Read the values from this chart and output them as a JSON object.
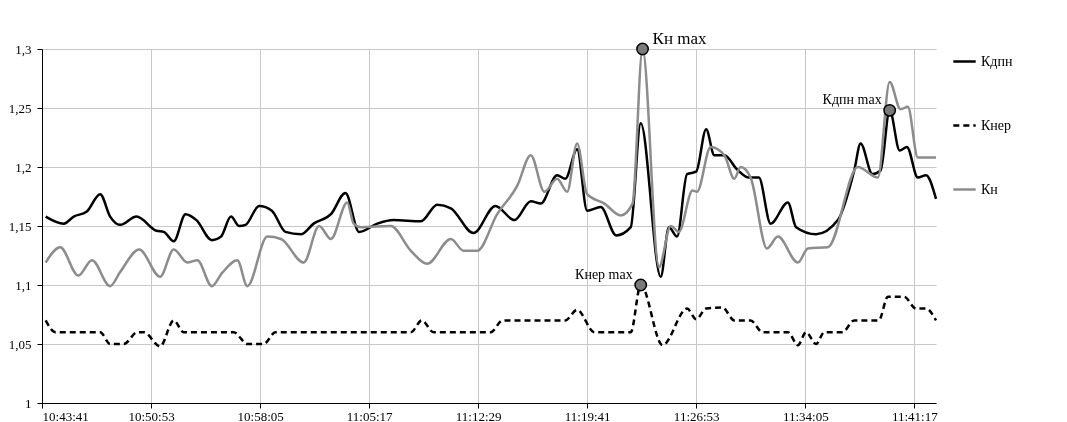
{
  "chart_data": {
    "type": "line",
    "xlim": [
      10.728,
      11.712
    ],
    "ylim": [
      1,
      1.3
    ],
    "xticks": [
      {
        "value": 10.7281,
        "label": "10:43:41"
      },
      {
        "value": 10.8481,
        "label": "10:50:53"
      },
      {
        "value": 10.9681,
        "label": "10:58:05"
      },
      {
        "value": 11.0881,
        "label": "11:05:17"
      },
      {
        "value": 11.2081,
        "label": "11:12:29"
      },
      {
        "value": 11.3281,
        "label": "11:19:41"
      },
      {
        "value": 11.4481,
        "label": "11:26:53"
      },
      {
        "value": 11.5681,
        "label": "11:34:05"
      },
      {
        "value": 11.6881,
        "label": "11:41:17"
      }
    ],
    "yticks": [
      1,
      {
        "value": 1.05,
        "label": "1,05"
      },
      {
        "value": 1.1,
        "label": "1,1"
      },
      {
        "value": 1.15,
        "label": "1,15"
      },
      {
        "value": 1.2,
        "label": "1,2"
      },
      {
        "value": 1.25,
        "label": "1,25"
      },
      {
        "value": 1.3,
        "label": "1,3"
      }
    ],
    "grid": true,
    "legend": "right",
    "marker": "none",
    "series": [
      {
        "name": "Кдпн",
        "color": "#000000",
        "line_style": "solid",
        "x": [
          10.732,
          10.752,
          10.763,
          10.777,
          10.792,
          10.803,
          10.814,
          10.832,
          10.854,
          10.862,
          10.873,
          10.886,
          10.898,
          10.915,
          10.925,
          10.936,
          10.945,
          10.952,
          10.967,
          10.981,
          10.996,
          11.013,
          11.027,
          11.046,
          11.062,
          11.077,
          11.097,
          11.115,
          11.145,
          11.163,
          11.178,
          11.203,
          11.227,
          11.248,
          11.266,
          11.277,
          11.295,
          11.304,
          11.317,
          11.328,
          11.343,
          11.36,
          11.376,
          11.387,
          11.409,
          11.418,
          11.427,
          11.438,
          11.448,
          11.459,
          11.468,
          11.479,
          11.493,
          11.506,
          11.517,
          11.53,
          11.549,
          11.558,
          11.58,
          11.604,
          11.622,
          11.629,
          11.642,
          11.651,
          11.661,
          11.672,
          11.68,
          11.692,
          11.701,
          11.712
        ],
        "values": [
          1.158,
          1.152,
          1.158,
          1.162,
          1.177,
          1.158,
          1.151,
          1.158,
          1.146,
          1.145,
          1.137,
          1.16,
          1.155,
          1.138,
          1.141,
          1.158,
          1.15,
          1.151,
          1.167,
          1.163,
          1.145,
          1.143,
          1.152,
          1.16,
          1.178,
          1.145,
          1.152,
          1.155,
          1.154,
          1.168,
          1.165,
          1.144,
          1.167,
          1.155,
          1.171,
          1.169,
          1.193,
          1.19,
          1.215,
          1.163,
          1.166,
          1.142,
          1.149,
          1.237,
          1.107,
          1.149,
          1.141,
          1.194,
          1.196,
          1.232,
          1.21,
          1.21,
          1.198,
          1.191,
          1.191,
          1.152,
          1.17,
          1.149,
          1.143,
          1.155,
          1.197,
          1.22,
          1.194,
          1.197,
          1.248,
          1.214,
          1.217,
          1.191,
          1.193,
          1.173
        ]
      },
      {
        "name": "Кнер",
        "color": "#000000",
        "line_style": "dashed",
        "x": [
          10.732,
          10.743,
          10.792,
          10.803,
          10.818,
          10.833,
          10.84,
          10.858,
          10.873,
          10.884,
          10.939,
          10.954,
          10.972,
          10.985,
          11.134,
          11.146,
          11.159,
          11.222,
          11.235,
          11.304,
          11.317,
          11.336,
          11.376,
          11.387,
          11.411,
          11.438,
          11.448,
          11.459,
          11.477,
          11.49,
          11.508,
          11.521,
          11.549,
          11.56,
          11.569,
          11.58,
          11.589,
          11.609,
          11.622,
          11.649,
          11.659,
          11.677,
          11.69,
          11.701,
          11.712
        ],
        "values": [
          1.07,
          1.06,
          1.06,
          1.05,
          1.05,
          1.06,
          1.06,
          1.048,
          1.07,
          1.06,
          1.06,
          1.05,
          1.05,
          1.06,
          1.06,
          1.07,
          1.06,
          1.06,
          1.07,
          1.07,
          1.079,
          1.06,
          1.06,
          1.1,
          1.049,
          1.08,
          1.071,
          1.08,
          1.081,
          1.07,
          1.07,
          1.06,
          1.06,
          1.049,
          1.06,
          1.05,
          1.06,
          1.06,
          1.07,
          1.07,
          1.09,
          1.09,
          1.08,
          1.08,
          1.07
        ]
      },
      {
        "name": "Кн",
        "color": "#8c8c8c",
        "line_style": "solid",
        "x": [
          10.732,
          10.748,
          10.768,
          10.783,
          10.803,
          10.814,
          10.835,
          10.858,
          10.873,
          10.888,
          10.899,
          10.915,
          10.926,
          10.943,
          10.954,
          10.976,
          10.991,
          11.016,
          11.033,
          11.046,
          11.064,
          11.071,
          11.079,
          11.112,
          11.134,
          11.152,
          11.178,
          11.192,
          11.207,
          11.229,
          11.251,
          11.266,
          11.281,
          11.295,
          11.306,
          11.317,
          11.328,
          11.347,
          11.365,
          11.378,
          11.389,
          11.407,
          11.42,
          11.429,
          11.444,
          11.449,
          11.464,
          11.479,
          11.49,
          11.497,
          11.508,
          11.526,
          11.538,
          11.56,
          11.571,
          11.593,
          11.626,
          11.648,
          11.661,
          11.673,
          11.681,
          11.692,
          11.712
        ],
        "values": [
          1.119,
          1.132,
          1.108,
          1.121,
          1.099,
          1.111,
          1.13,
          1.107,
          1.13,
          1.119,
          1.121,
          1.099,
          1.11,
          1.121,
          1.099,
          1.141,
          1.139,
          1.119,
          1.15,
          1.139,
          1.17,
          1.152,
          1.149,
          1.15,
          1.129,
          1.118,
          1.139,
          1.129,
          1.129,
          1.16,
          1.184,
          1.21,
          1.179,
          1.19,
          1.179,
          1.22,
          1.177,
          1.169,
          1.159,
          1.169,
          1.3,
          1.115,
          1.15,
          1.145,
          1.18,
          1.179,
          1.217,
          1.21,
          1.19,
          1.2,
          1.191,
          1.131,
          1.141,
          1.119,
          1.131,
          1.132,
          1.2,
          1.191,
          1.272,
          1.249,
          1.251,
          1.208,
          1.208
        ]
      }
    ],
    "annotations": [
      {
        "text": "Кн max",
        "x": 11.389,
        "y": 1.3
      },
      {
        "text": "Кдпн max",
        "x": 11.661,
        "y": 1.248
      },
      {
        "text": "Кнер max",
        "x": 11.387,
        "y": 1.1
      }
    ]
  }
}
